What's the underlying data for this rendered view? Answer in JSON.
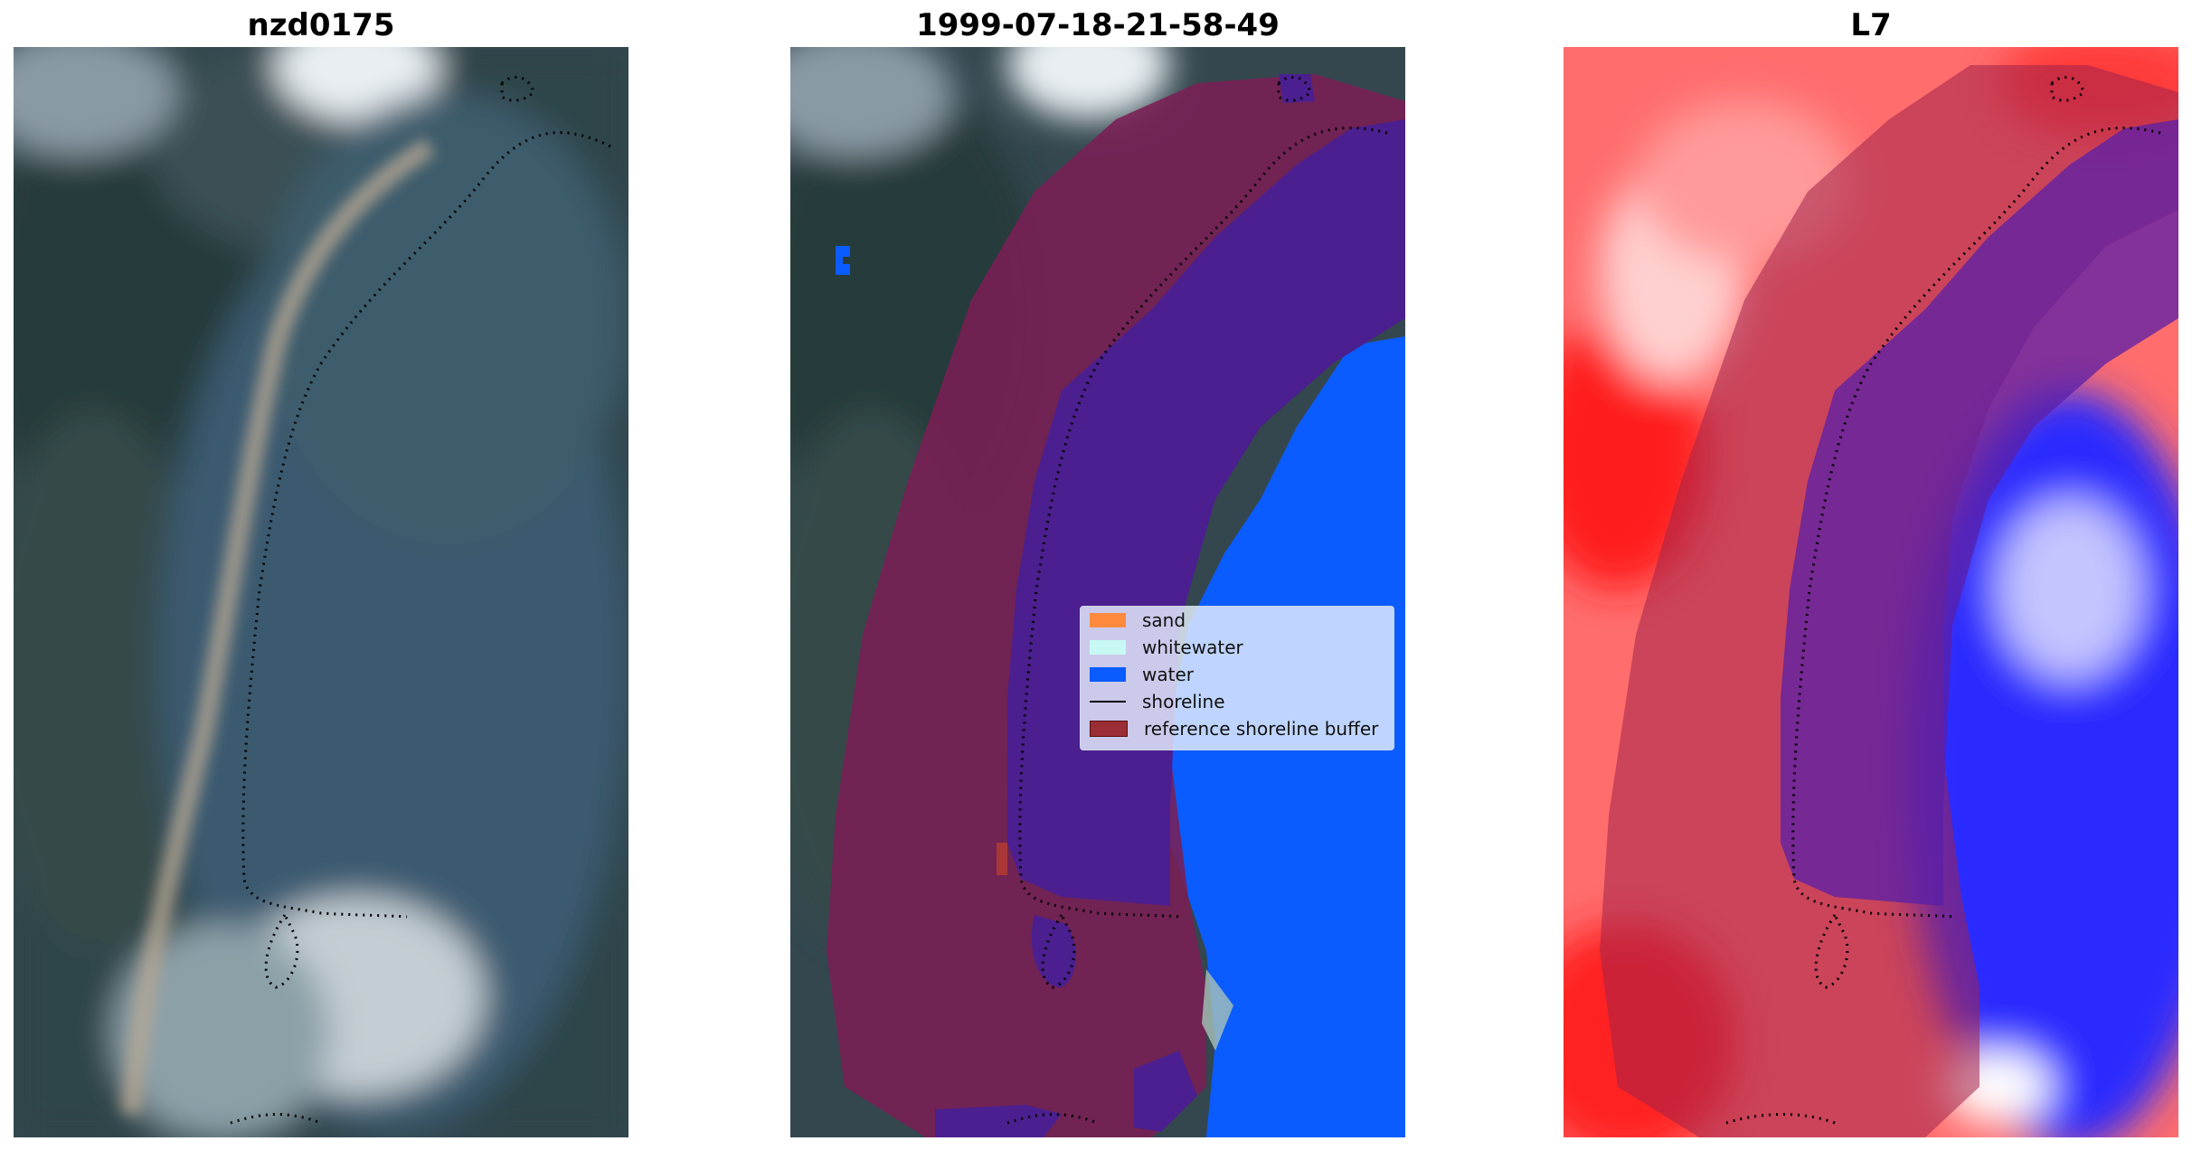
{
  "panels": [
    {
      "title": "nzd0175",
      "kind": "rgb"
    },
    {
      "title": "1999-07-18-21-58-49",
      "kind": "classified"
    },
    {
      "title": "L7",
      "kind": "index"
    }
  ],
  "legend": {
    "items": [
      {
        "label": "sand",
        "color": "#ff8a3d",
        "type": "patch"
      },
      {
        "label": "whitewater",
        "color": "#c8f8f4",
        "type": "patch"
      },
      {
        "label": "water",
        "color": "#0a5cff",
        "type": "patch"
      },
      {
        "label": "shoreline",
        "color": "#000000",
        "type": "line"
      },
      {
        "label": "reference shoreline buffer",
        "color": "#9a2d36",
        "type": "patch"
      }
    ]
  },
  "colors": {
    "land_dark": "#2e3f49",
    "lagoon": "#3d5a70",
    "cloud": "#d9e0e6",
    "buffer": "#7d2456",
    "water_class": "#4b1f8f",
    "ocean_class": "#0a5cff",
    "index_red": "#ff4a4a",
    "index_blue": "#2a2aff"
  }
}
